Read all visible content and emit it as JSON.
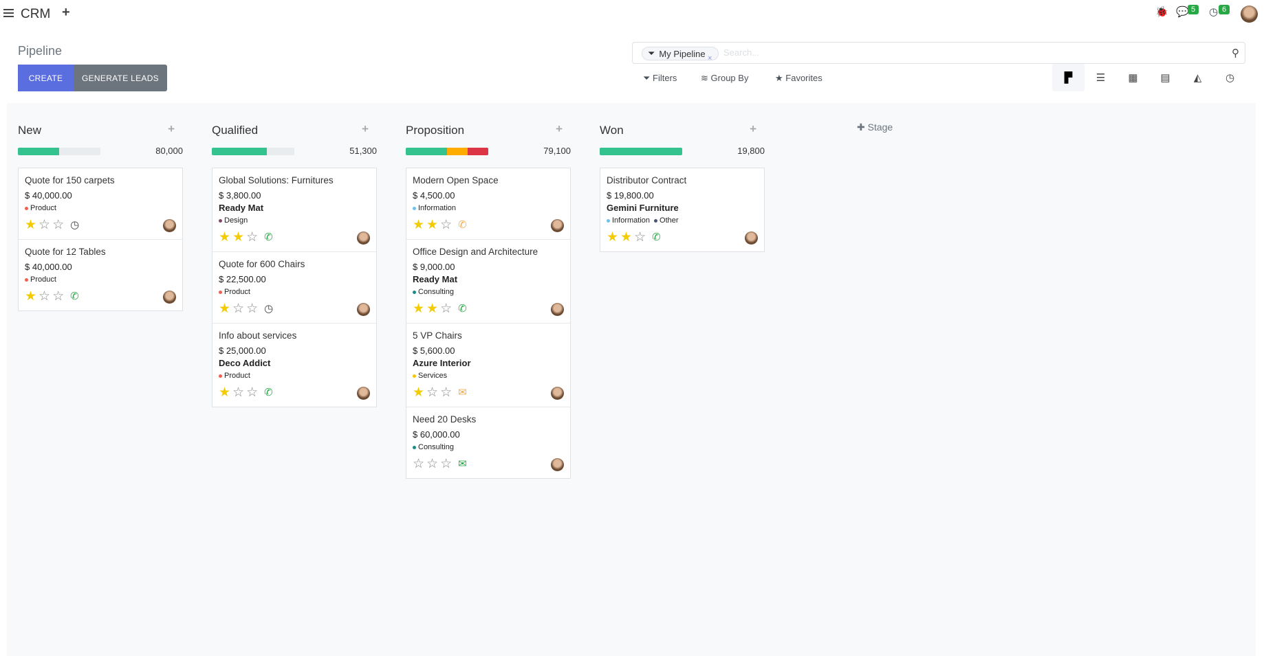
{
  "topbar": {
    "app": "CRM",
    "new_tab": "+",
    "messages_count": "5",
    "activities_count": "6"
  },
  "control": {
    "title": "Pipeline",
    "create": "CREATE",
    "generate": "GENERATE LEADS",
    "facet": "My Pipeline",
    "facet_remove": "×",
    "search_placeholder": "Search...",
    "filters": "Filters",
    "group_by": "Group By",
    "favorites": "Favorites",
    "views": [
      "kanban",
      "list",
      "calendar",
      "pivot",
      "graph",
      "activity"
    ],
    "active_view": "kanban"
  },
  "colors": {
    "primary": "#5a6ee0",
    "success": "#34c38f",
    "warning": "#ffac00",
    "danger": "#dc3545",
    "star": "#f3cc00"
  },
  "add_stage": "Stage",
  "columns": [
    {
      "title": "New",
      "total": "80,000",
      "progress": {
        "green": 50,
        "orange": 0,
        "red": 0
      },
      "cards": [
        {
          "title": "Quote for 150 carpets",
          "price": "$ 40,000.00",
          "company": "",
          "tags": [
            {
              "label": "Product",
              "color": "#f06050"
            }
          ],
          "stars": 1,
          "activity": "clock",
          "activity_color": "#444"
        },
        {
          "title": "Quote for 12 Tables",
          "price": "$ 40,000.00",
          "company": "",
          "tags": [
            {
              "label": "Product",
              "color": "#f06050"
            }
          ],
          "stars": 1,
          "activity": "phone",
          "activity_color": "#28a745"
        }
      ]
    },
    {
      "title": "Qualified",
      "total": "51,300",
      "progress": {
        "green": 67,
        "orange": 0,
        "red": 0
      },
      "cards": [
        {
          "title": "Global Solutions: Furnitures",
          "price": "$ 3,800.00",
          "company": "Ready Mat",
          "tags": [
            {
              "label": "Design",
              "color": "#814968"
            }
          ],
          "stars": 2,
          "activity": "phone",
          "activity_color": "#28a745"
        },
        {
          "title": "Quote for 600 Chairs",
          "price": "$ 22,500.00",
          "company": "",
          "tags": [
            {
              "label": "Product",
              "color": "#f06050"
            }
          ],
          "stars": 1,
          "activity": "clock",
          "activity_color": "#444"
        },
        {
          "title": "Info about services",
          "price": "$ 25,000.00",
          "company": "Deco Addict",
          "tags": [
            {
              "label": "Product",
              "color": "#f06050"
            }
          ],
          "stars": 1,
          "activity": "phone",
          "activity_color": "#28a745"
        }
      ]
    },
    {
      "title": "Proposition",
      "total": "79,100",
      "progress": {
        "green": 50,
        "orange": 25,
        "red": 25
      },
      "cards": [
        {
          "title": "Modern Open Space",
          "price": "$ 4,500.00",
          "company": "",
          "tags": [
            {
              "label": "Information",
              "color": "#6cc1ed"
            }
          ],
          "stars": 2,
          "activity": "phone",
          "activity_color": "#f0ad4e"
        },
        {
          "title": "Office Design and Architecture",
          "price": "$ 9,000.00",
          "company": "Ready Mat",
          "tags": [
            {
              "label": "Consulting",
              "color": "#1f8a84"
            }
          ],
          "stars": 2,
          "activity": "phone",
          "activity_color": "#28a745"
        },
        {
          "title": "5 VP Chairs",
          "price": "$ 5,600.00",
          "company": "Azure Interior",
          "tags": [
            {
              "label": "Services",
              "color": "#f4c609"
            }
          ],
          "stars": 1,
          "activity": "envelope",
          "activity_color": "#f0ad4e"
        },
        {
          "title": "Need 20 Desks",
          "price": "$ 60,000.00",
          "company": "",
          "tags": [
            {
              "label": "Consulting",
              "color": "#1f8a84"
            }
          ],
          "stars": 0,
          "activity": "envelope",
          "activity_color": "#28a745"
        }
      ]
    },
    {
      "title": "Won",
      "total": "19,800",
      "progress": {
        "green": 100,
        "orange": 0,
        "red": 0
      },
      "cards": [
        {
          "title": "Distributor Contract",
          "price": "$ 19,800.00",
          "company": "Gemini Furniture",
          "tags": [
            {
              "label": "Information",
              "color": "#6cc1ed"
            },
            {
              "label": "Other",
              "color": "#475577"
            }
          ],
          "stars": 2,
          "activity": "phone",
          "activity_color": "#28a745"
        }
      ]
    }
  ]
}
